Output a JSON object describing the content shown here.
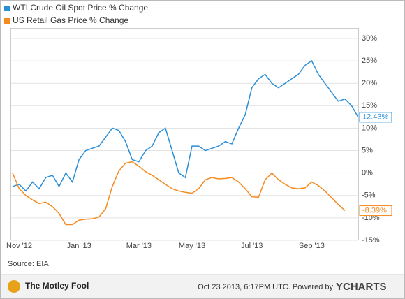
{
  "chart_data": {
    "type": "line",
    "categories": [
      null,
      "Nov '12",
      null,
      null,
      null,
      null,
      null,
      null,
      null,
      null,
      "Jan '13",
      null,
      null,
      null,
      null,
      null,
      null,
      null,
      null,
      "Mar '13",
      null,
      null,
      null,
      null,
      null,
      null,
      null,
      "May '13",
      null,
      null,
      null,
      null,
      null,
      null,
      null,
      null,
      "Jul '13",
      null,
      null,
      null,
      null,
      null,
      null,
      null,
      null,
      "Sep '13",
      null,
      null,
      null,
      null,
      null,
      null,
      null
    ],
    "series": [
      {
        "name": "WTI Crude Oil Spot Price % Change",
        "color": "#2b8fd8",
        "values": [
          -3,
          -2.5,
          -4,
          -2,
          -3.5,
          -1,
          -0.5,
          -3,
          0,
          -2,
          3,
          5,
          5.5,
          6,
          8,
          10,
          9.5,
          7,
          3,
          2.5,
          5,
          6,
          9,
          10,
          5,
          0,
          -1,
          6,
          6,
          5,
          5.5,
          6,
          7,
          6.5,
          10,
          13,
          19,
          21,
          22,
          20,
          19,
          20,
          21,
          22,
          24,
          25,
          22,
          20,
          18,
          16,
          16.5,
          15,
          12.43
        ],
        "value_labels": [
          null,
          null,
          null,
          null,
          null,
          null,
          null,
          null,
          null,
          null,
          null,
          null,
          null,
          null,
          null,
          null,
          null,
          null,
          null,
          null,
          null,
          null,
          null,
          null,
          null,
          null,
          null,
          null,
          null,
          null,
          null,
          null,
          null,
          null,
          null,
          null,
          null,
          null,
          null,
          null,
          null,
          null,
          null,
          null,
          null,
          null,
          null,
          null,
          null,
          null,
          null,
          null,
          "12.43%"
        ]
      },
      {
        "name": "US Retail Gas Price % Change",
        "color": "#f58a1f",
        "values": [
          0,
          -3.5,
          -5,
          -6,
          -6.8,
          -6.5,
          -7.5,
          -9,
          -11.5,
          -11.5,
          -10.5,
          -10.3,
          -10.2,
          -9.8,
          -8,
          -3,
          0.5,
          2.2,
          2.5,
          1.5,
          0.3,
          -0.5,
          -1.5,
          -2.5,
          -3.5,
          -4,
          -4.3,
          -4.5,
          -3.5,
          -1.5,
          -1,
          -1.3,
          -1.2,
          -1,
          -2,
          -3.5,
          -5.3,
          -5.4,
          -1.5,
          0,
          -1.5,
          -2.5,
          -3.3,
          -3.5,
          -3.3,
          -2,
          -2.8,
          -4,
          -5.5,
          -7,
          -8.39,
          null,
          null
        ],
        "value_labels": [
          null,
          null,
          null,
          null,
          null,
          null,
          null,
          null,
          null,
          null,
          null,
          null,
          null,
          null,
          null,
          null,
          null,
          null,
          null,
          null,
          null,
          null,
          null,
          null,
          null,
          null,
          null,
          null,
          null,
          null,
          null,
          null,
          null,
          null,
          null,
          null,
          null,
          null,
          null,
          null,
          null,
          null,
          null,
          null,
          null,
          null,
          null,
          null,
          null,
          null,
          "-8.39%",
          null,
          null
        ]
      }
    ],
    "ylim": [
      -15,
      30
    ],
    "yticks": [
      {
        "value": -15,
        "label": "-15%"
      },
      {
        "value": -10,
        "label": "-10%"
      },
      {
        "value": -5,
        "label": "-5%"
      },
      {
        "value": 0,
        "label": "0%"
      },
      {
        "value": 5,
        "label": "5%"
      },
      {
        "value": 10,
        "label": "10%"
      },
      {
        "value": 15,
        "label": "15%"
      },
      {
        "value": 20,
        "label": "20%"
      },
      {
        "value": 25,
        "label": "25%"
      },
      {
        "value": 30,
        "label": "30%"
      }
    ],
    "grid": true,
    "legend": "top-left",
    "source": "Source: EIA",
    "logo": "The Motley Fool",
    "timestamp": "Oct 23 2013, 6:17PM UTC. Powered by",
    "brand": "YCHARTS"
  }
}
